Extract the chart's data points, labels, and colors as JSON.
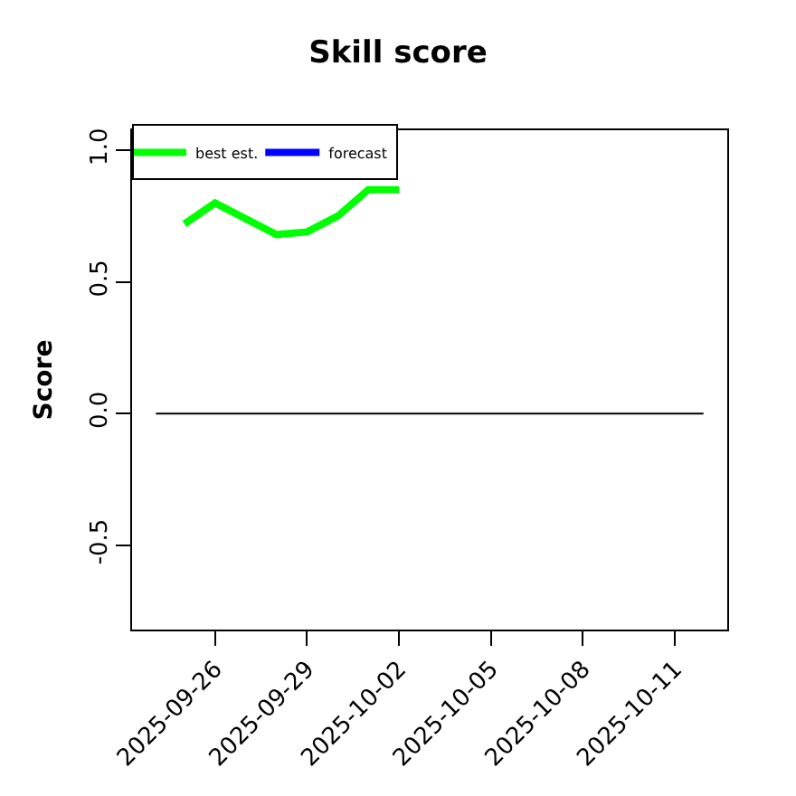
{
  "chart_data": {
    "type": "line",
    "title": "Skill score",
    "ylabel": "Score",
    "series": [
      {
        "name": "best est.",
        "color": "#00ff00",
        "x": [
          "2025-09-25",
          "2025-09-26",
          "2025-09-28",
          "2025-09-29",
          "2025-09-30",
          "2025-10-01",
          "2025-10-02"
        ],
        "values": [
          0.72,
          0.8,
          0.68,
          0.69,
          0.75,
          0.85,
          0.85
        ]
      },
      {
        "name": "forecast",
        "color": "#0000ff"
      }
    ],
    "xlim": [
      "2025-09-23T07:00",
      "2025-10-12T17:00"
    ],
    "xticks": [
      {
        "value": "2025-09-26",
        "label": "2025-09-26"
      },
      {
        "value": "2025-09-29",
        "label": "2025-09-29"
      },
      {
        "value": "2025-10-02",
        "label": "2025-10-02"
      },
      {
        "value": "2025-10-05",
        "label": "2025-10-05"
      },
      {
        "value": "2025-10-08",
        "label": "2025-10-08"
      },
      {
        "value": "2025-10-11",
        "label": "2025-10-11"
      }
    ],
    "ylim": [
      -0.82,
      1.076
    ],
    "yticks": [
      -0.5,
      {
        "value": 0,
        "label": "0.0"
      },
      0.5,
      {
        "value": 1,
        "label": "1.0"
      }
    ],
    "ref_lines": [
      {
        "axis": "y",
        "value": 0,
        "color": "#000000"
      }
    ],
    "legend": "top left",
    "line_style": "solid",
    "marker": "none"
  }
}
